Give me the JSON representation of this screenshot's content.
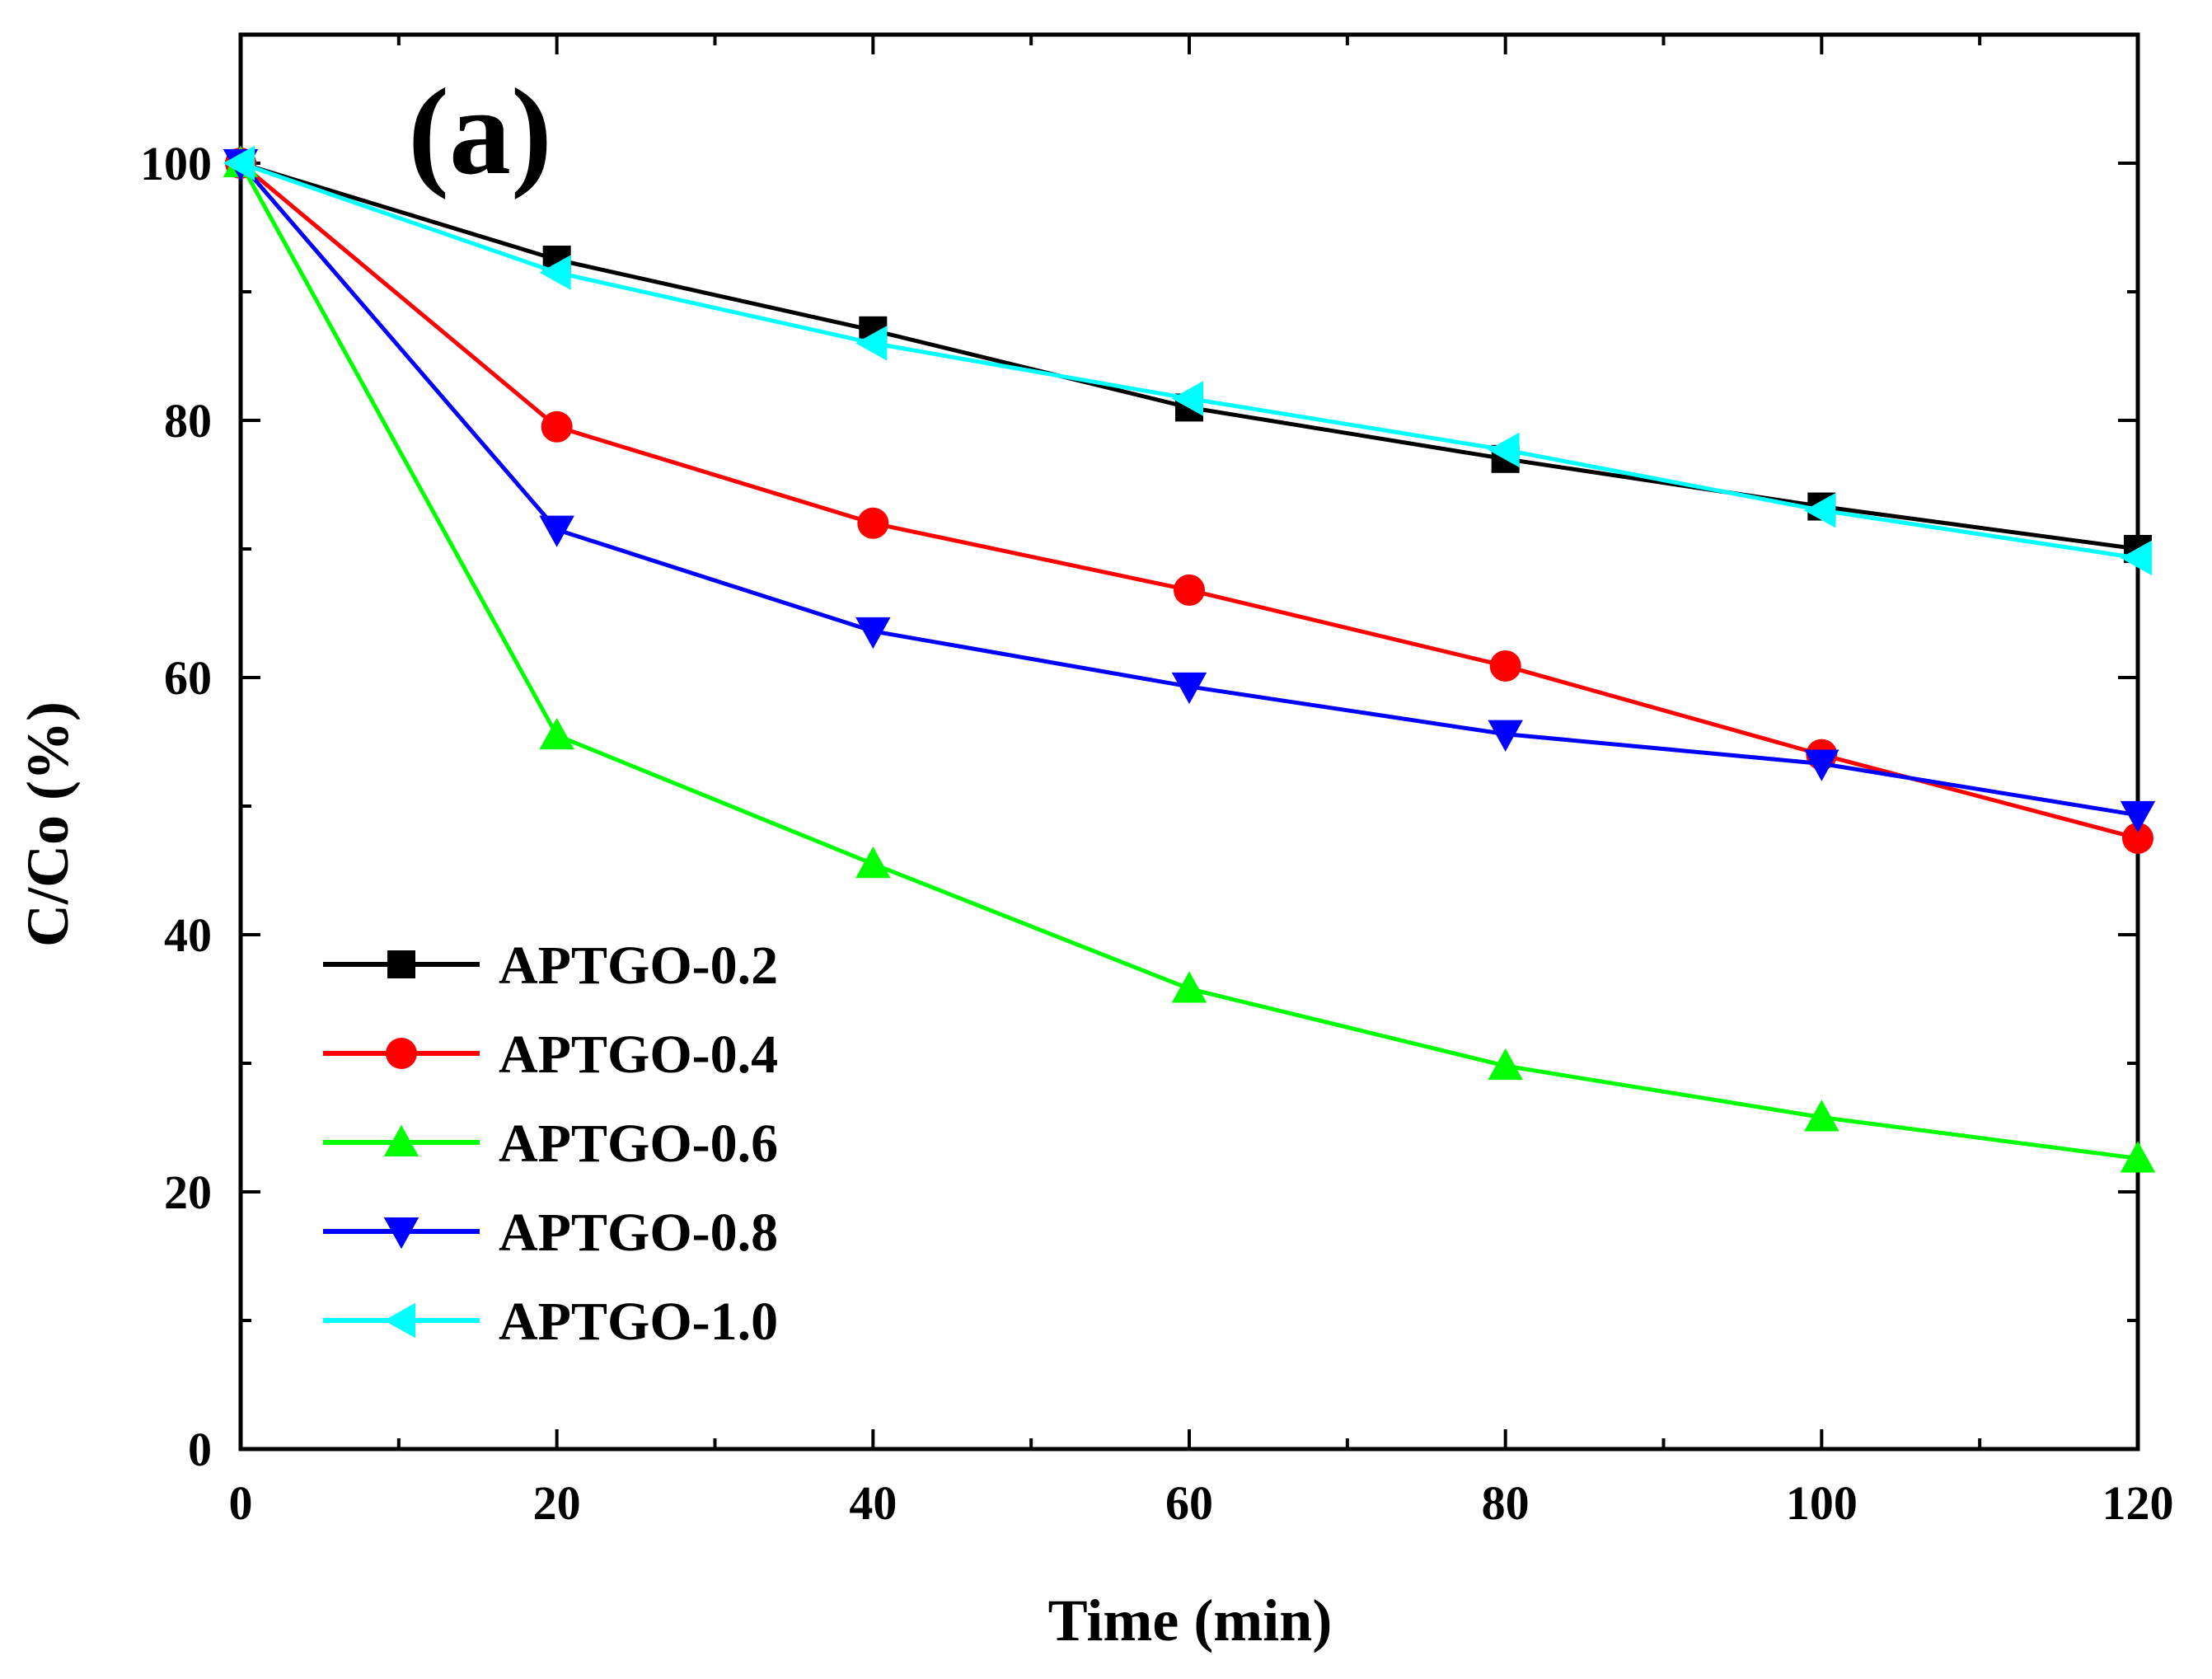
{
  "chart_data": {
    "type": "line",
    "panel_label": "(a)",
    "title": "",
    "xlabel": "Time (min)",
    "ylabel": "C/Co (%)",
    "xlim": [
      0,
      120
    ],
    "ylim": [
      0,
      110
    ],
    "x_ticks": [
      0,
      20,
      40,
      60,
      80,
      100,
      120
    ],
    "x_tick_labels": [
      "0",
      "20",
      "40",
      "60",
      "80",
      "100",
      "120"
    ],
    "y_ticks": [
      0,
      20,
      40,
      60,
      80,
      100
    ],
    "y_tick_labels": [
      "0",
      "20",
      "40",
      "60",
      "80",
      "100"
    ],
    "grid": false,
    "legend_position": "lower-left",
    "x": [
      0,
      20,
      40,
      60,
      80,
      100,
      120
    ],
    "series": [
      {
        "name": "APTGO-0.2",
        "color": "#000000",
        "marker": "square",
        "values": [
          100,
          92.5,
          87,
          81,
          77,
          73.3,
          70
        ]
      },
      {
        "name": "APTGO-0.4",
        "color": "#ff0000",
        "marker": "circle",
        "values": [
          100,
          79.5,
          72,
          66.8,
          60.9,
          54,
          47.5
        ]
      },
      {
        "name": "APTGO-0.6",
        "color": "#00ff00",
        "marker": "triangle-up",
        "values": [
          100,
          55.5,
          45.5,
          35.8,
          29.8,
          25.8,
          22.6
        ]
      },
      {
        "name": "APTGO-0.8",
        "color": "#0000ff",
        "marker": "triangle-down",
        "values": [
          100,
          71.5,
          63.6,
          59.3,
          55.6,
          53.3,
          49.3
        ]
      },
      {
        "name": "APTGO-1.0",
        "color": "#00ffff",
        "marker": "triangle-left",
        "values": [
          100,
          91.5,
          86,
          81.7,
          77.7,
          73,
          69.3
        ]
      }
    ]
  }
}
